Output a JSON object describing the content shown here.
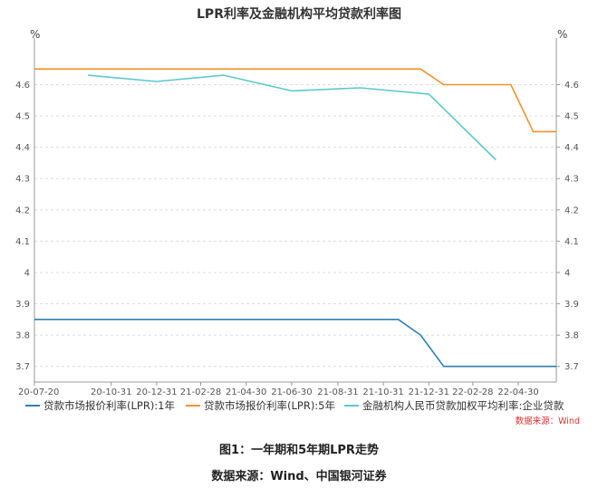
{
  "chart_data": {
    "type": "line",
    "title": "LPR利率及金融机构平均贷款利率图",
    "left_unit": "%",
    "right_unit": "%",
    "ylim": [
      3.65,
      4.72
    ],
    "y_ticks": [
      "4.6",
      "4.5",
      "4.4",
      "4.3",
      "4.2",
      "4.1",
      "4",
      "3.9",
      "3.8",
      "3.7"
    ],
    "x_ticks": [
      "20-07-20",
      "20-10-31",
      "20-12-31",
      "21-02-28",
      "21-04-30",
      "21-06-30",
      "21-08-31",
      "21-10-31",
      "21-12-31",
      "22-02-28",
      "22-04-30"
    ],
    "grid": true,
    "legend_position": "bottom",
    "series": [
      {
        "name": "贷款市场报价利率(LPR):1年",
        "color": "#2e7fb5",
        "x": [
          "2020-07-20",
          "2021-11-20",
          "2021-12-20",
          "2022-01-20",
          "2022-06-20"
        ],
        "values": [
          3.85,
          3.85,
          3.8,
          3.7,
          3.7
        ]
      },
      {
        "name": "贷款市场报价利率(LPR):5年",
        "color": "#f0922e",
        "x": [
          "2020-07-20",
          "2021-12-20",
          "2022-01-20",
          "2022-04-20",
          "2022-05-20",
          "2022-06-20"
        ],
        "values": [
          4.65,
          4.65,
          4.6,
          4.6,
          4.45,
          4.45
        ]
      },
      {
        "name": "金融机构人民币贷款加权平均利率:企业贷款",
        "color": "#5ec8cc",
        "x": [
          "2020-09-30",
          "2020-12-31",
          "2021-03-31",
          "2021-06-30",
          "2021-09-30",
          "2021-12-31",
          "2022-03-31"
        ],
        "values": [
          4.63,
          4.61,
          4.63,
          4.58,
          4.59,
          4.57,
          4.36
        ]
      }
    ],
    "source_note": "数据来源：Wind"
  },
  "captions": {
    "figure": "图1：一年期和5年期LPR走势",
    "source": "数据来源：Wind、中国银河证券"
  }
}
